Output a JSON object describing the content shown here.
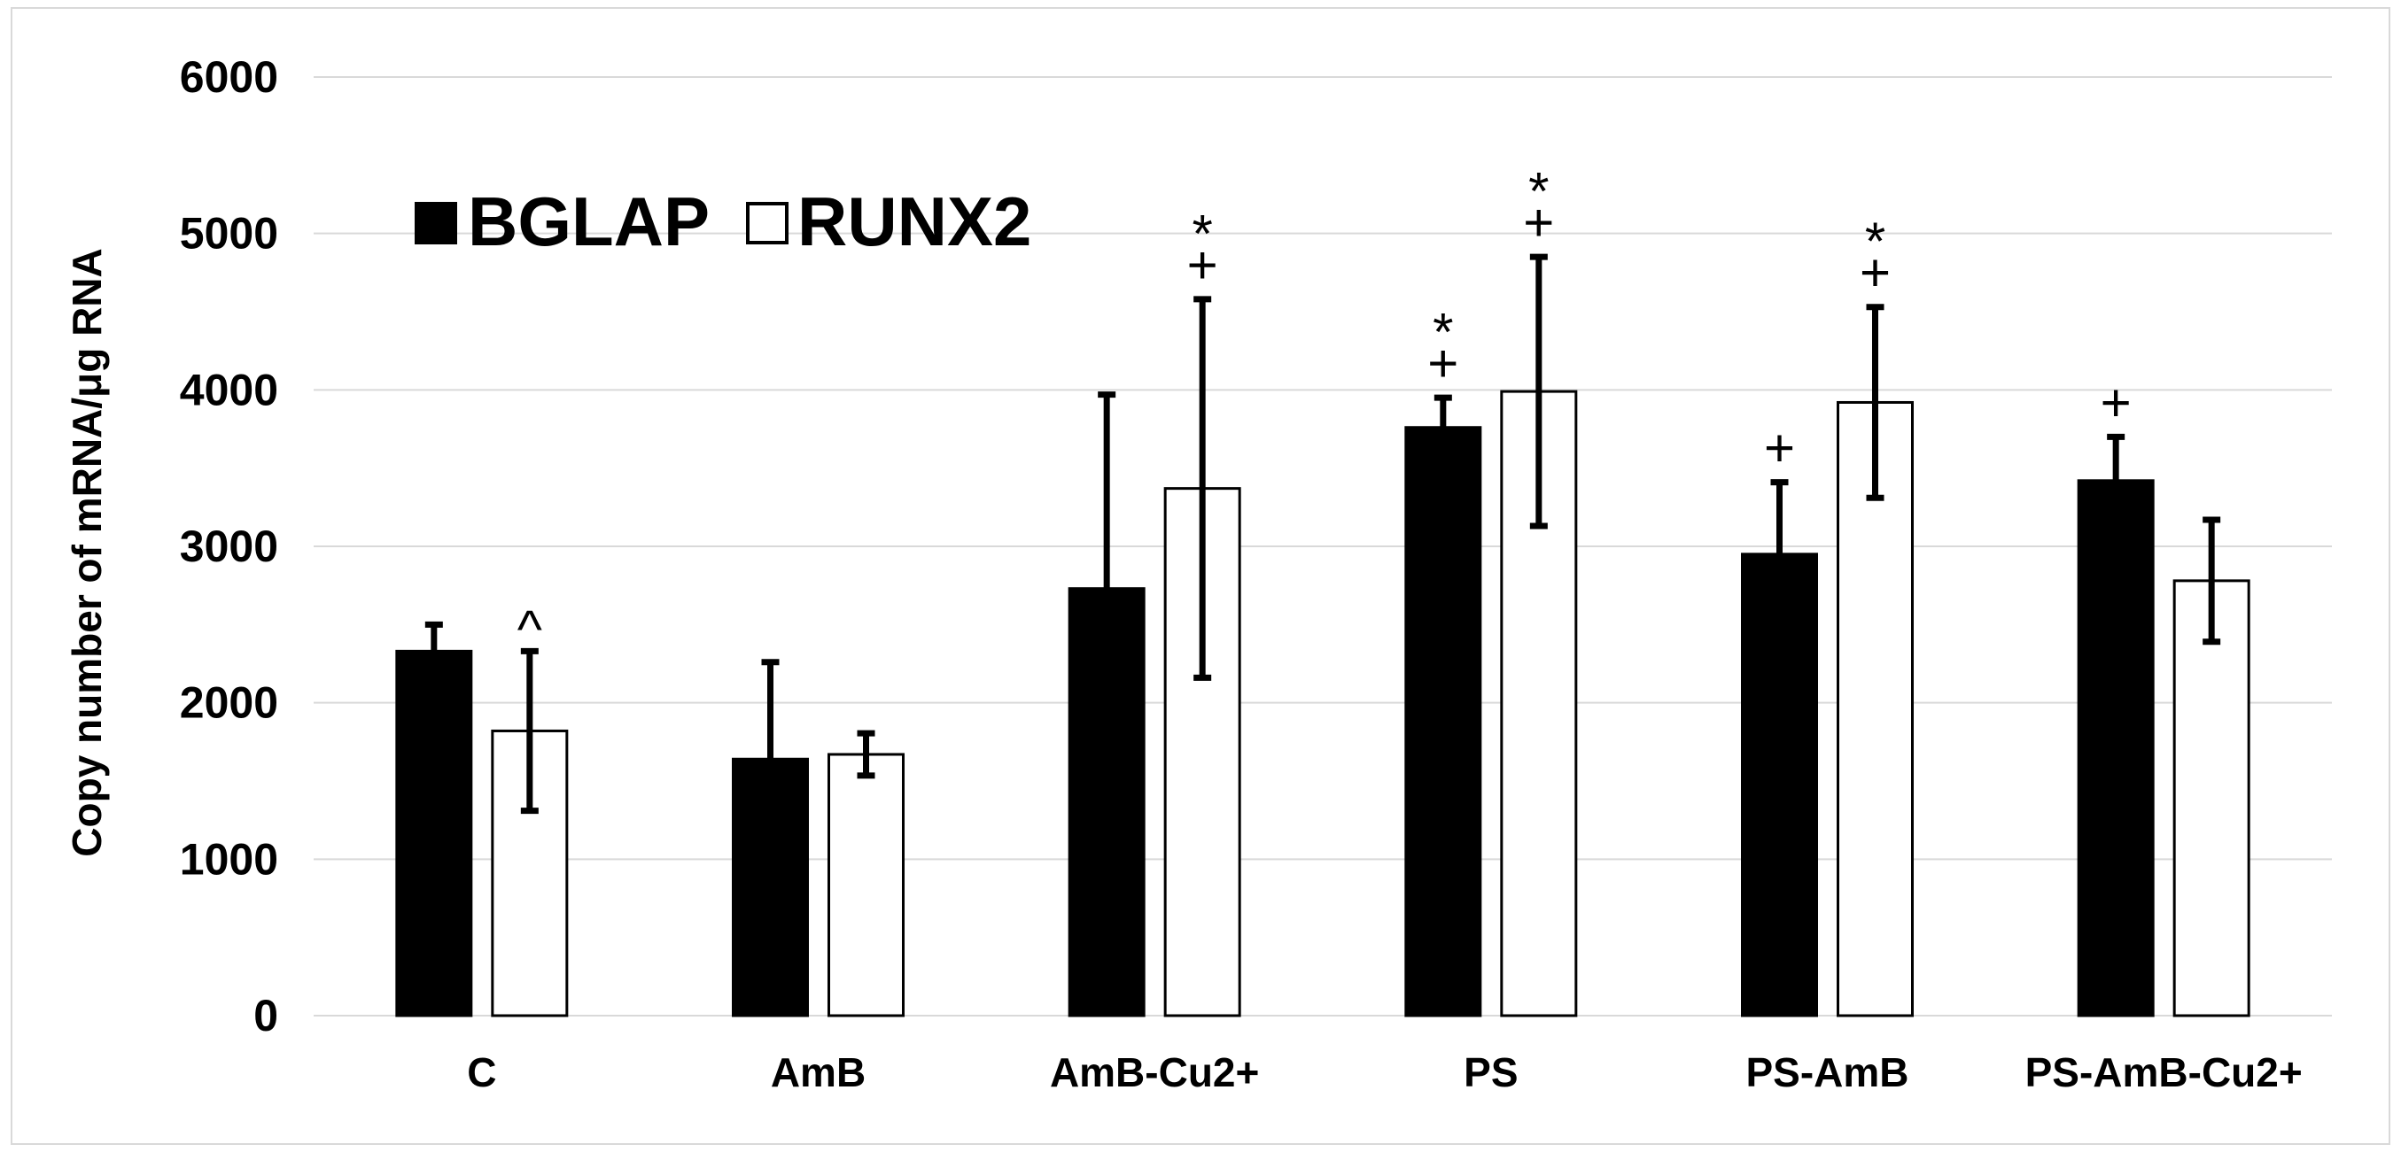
{
  "chart_data": {
    "type": "bar",
    "title": "",
    "xlabel": "",
    "ylabel": "Copy number of mRNA/μg RNA",
    "ylim": [
      0,
      6000
    ],
    "yticks": [
      0,
      1000,
      2000,
      3000,
      4000,
      5000,
      6000
    ],
    "ytick_labels": [
      "0",
      "1000",
      "2000",
      "3000",
      "4000",
      "5000",
      "6000"
    ],
    "grid": true,
    "legend_position": "top-left",
    "categories": [
      "C",
      "AmB",
      "AmB-Cu2+",
      "PS",
      "PS-AmB",
      "PS-AmB-Cu2+"
    ],
    "series": [
      {
        "name": "BGLAP",
        "color": "#000000",
        "values": [
          2330,
          1640,
          2730,
          3760,
          2950,
          3420
        ],
        "error": [
          170,
          620,
          1240,
          190,
          460,
          280
        ],
        "annotations": [
          [
            "",
            ""
          ],
          [
            "",
            ""
          ],
          [
            "",
            ""
          ],
          [
            "+",
            "*"
          ],
          [
            "+",
            ""
          ],
          [
            "+",
            ""
          ]
        ]
      },
      {
        "name": "RUNX2",
        "color": "#ffffff",
        "values": [
          1820,
          1670,
          3370,
          3990,
          3920,
          2780
        ],
        "error": [
          510,
          135,
          1210,
          860,
          610,
          390
        ],
        "annotations": [
          [
            "^",
            ""
          ],
          [
            "",
            ""
          ],
          [
            "+",
            "*"
          ],
          [
            "+",
            "*"
          ],
          [
            "+",
            "*"
          ],
          [
            "",
            ""
          ]
        ]
      }
    ]
  }
}
